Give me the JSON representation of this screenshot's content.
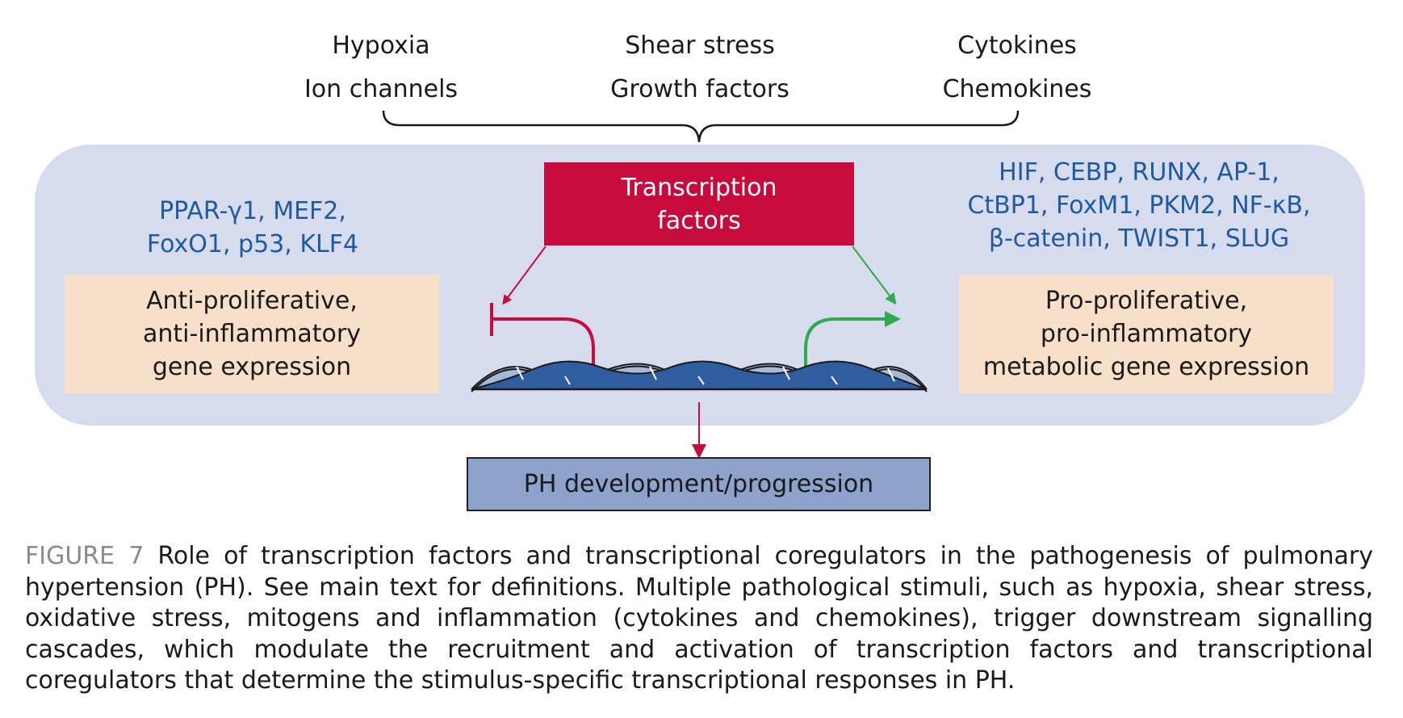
{
  "stimuli": {
    "left": [
      "Hypoxia",
      "Ion channels"
    ],
    "center": [
      "Shear stress",
      "Growth factors"
    ],
    "right": [
      "Cytokines",
      "Chemokines"
    ]
  },
  "transcription_factors_box": "Transcription\nfactors",
  "anti_tfs": "PPAR-γ1, MEF2,\nFoxO1, p53, KLF4",
  "pro_tfs": "HIF, CEBP, RUNX, AP-1,\nCtBP1, FoxM1, PKM2, NF-κB,\nβ-catenin, TWIST1, SLUG",
  "anti_outcome": "Anti-proliferative,\nanti-inflammatory\ngene expression",
  "pro_outcome": "Pro-proliferative,\npro-inflammatory\nmetabolic gene expression",
  "result_box": "PH development/progression",
  "caption": {
    "label": "FIGURE 7",
    "text": " Role of transcription factors and transcriptional coregulators in the pathogenesis of pulmonary hypertension (PH). See main text for definitions. Multiple pathological stimuli, such as hypoxia, shear stress, oxidative stress, mitogens and inflammation (cytokines and chemokines), trigger downstream signalling cascades, which modulate the recruitment and activation of transcription factors and transcriptional coregulators that determine the stimulus-specific transcriptional responses in PH."
  },
  "colors": {
    "panel": "#d6dced",
    "tf_box": "#c70b3c",
    "tf_text": "#1f5aa0",
    "outcome_box": "#f8dfc9",
    "result_box": "#8da3cc",
    "inhibit": "#c70b3c",
    "activate": "#2eaa4f"
  }
}
